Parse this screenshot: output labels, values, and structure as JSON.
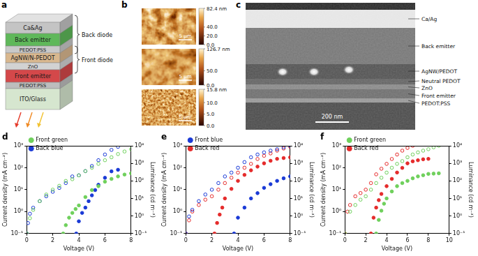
{
  "schematic": {
    "letter": "a",
    "layers": [
      "Ca&Ag",
      "Back emitter",
      "PEDOT:PSS",
      "AgNW/N-PEDOT",
      "ZnO",
      "Front emitter",
      "PEDOT:PSS",
      "ITO/Glass"
    ],
    "groups": [
      "Back diode",
      "Front diode"
    ]
  },
  "afm": {
    "letter": "b",
    "images": [
      {
        "scale_bar": "5 μm",
        "colorbar_range": [
          0,
          82.4
        ],
        "colorbar_ticks": [
          {
            "value": 82.4,
            "label": "82.4 nm"
          },
          {
            "value": 40,
            "label": "40.0"
          },
          {
            "value": 20,
            "label": "20.0"
          },
          {
            "value": 0,
            "label": "0.0"
          }
        ]
      },
      {
        "scale_bar": "5 μm",
        "colorbar_range": [
          0,
          126.7
        ],
        "colorbar_ticks": [
          {
            "value": 126.7,
            "label": "126.7 nm"
          },
          {
            "value": 50,
            "label": "50.0"
          },
          {
            "value": 0,
            "label": "0.0"
          }
        ]
      },
      {
        "scale_bar": "5 μm",
        "colorbar_range": [
          0,
          15.8
        ],
        "colorbar_ticks": [
          {
            "value": 15.8,
            "label": "15.8 nm"
          },
          {
            "value": 10,
            "label": "10.0"
          },
          {
            "value": 5,
            "label": "5.0"
          },
          {
            "value": 0,
            "label": "0.0"
          }
        ]
      }
    ]
  },
  "sem": {
    "letter": "c",
    "labels": [
      "Ca/Ag",
      "Back emitter",
      "AgNW/PEDOT",
      "Neutral PEDOT",
      "ZnO",
      "Front emitter",
      "PEDOT:PSS"
    ],
    "scale_bar": "200 nm"
  },
  "chart_data": [
    {
      "letter": "d",
      "type": "scatter",
      "x_label": "Voltage (V)",
      "y_label": "Current density (mA cm⁻²)",
      "y2_label": "Luminance (cd m⁻²)",
      "log": "y",
      "grid": false,
      "legend": "top left",
      "xlim": [
        0,
        8
      ],
      "xticks": [
        0,
        2,
        4,
        6,
        8
      ],
      "ylim": [
        0.1,
        1000
      ],
      "yticks": [
        {
          "value": 0.1,
          "label": "10⁻¹"
        },
        {
          "value": 1,
          "label": "10⁰"
        },
        {
          "value": 10,
          "label": "10¹"
        },
        {
          "value": 100,
          "label": "10²"
        },
        {
          "value": 1000,
          "label": "10³"
        }
      ],
      "y2lim": [
        0.1,
        10000
      ],
      "y2ticks": [
        {
          "value": 0.1,
          "label": "10⁻¹"
        },
        {
          "value": 1,
          "label": "10⁰"
        },
        {
          "value": 10,
          "label": "10¹"
        },
        {
          "value": 100,
          "label": "10²"
        },
        {
          "value": 1000,
          "label": "10³"
        },
        {
          "value": 10000,
          "label": "10⁴"
        }
      ],
      "series": [
        {
          "name": "Front green",
          "color": "#6fd05c",
          "marker": "open_circle",
          "axis": "y",
          "x": [
            0,
            0.25,
            0.5,
            1,
            1.5,
            2,
            2.5,
            3,
            3.5,
            4,
            4.5,
            5,
            5.5,
            6,
            6.5,
            7,
            7.5,
            8
          ],
          "values": [
            0.1,
            0.5,
            1.2,
            3,
            6,
            10,
            15,
            25,
            30,
            45,
            70,
            100,
            150,
            220,
            300,
            420,
            550,
            700
          ]
        },
        {
          "name": "Back blue",
          "color": "#1a3ad6",
          "marker": "open_circle",
          "axis": "y",
          "x": [
            0,
            0.1,
            0.25,
            0.5,
            1,
            1.5,
            2,
            2.5,
            3,
            3.5,
            4,
            4.5,
            5,
            5.5,
            6,
            6.5,
            7
          ],
          "values": [
            0.1,
            0.3,
            0.8,
            1.5,
            3,
            5,
            8,
            12,
            20,
            40,
            45,
            70,
            120,
            220,
            400,
            650,
            900
          ]
        },
        {
          "name": "Front green",
          "color": "#6fd05c",
          "marker": "circle",
          "axis": "y2",
          "x": [
            2.8,
            3,
            3.25,
            3.5,
            3.75,
            4,
            4.5,
            5,
            5.5,
            6,
            6.5,
            7,
            7.5,
            8
          ],
          "values": [
            0.1,
            0.3,
            0.8,
            1.5,
            2.5,
            4,
            12,
            30,
            50,
            90,
            130,
            180,
            230,
            270
          ]
        },
        {
          "name": "Back blue",
          "color": "#1a3ad6",
          "marker": "circle",
          "axis": "y2",
          "x": [
            3.8,
            4,
            4.25,
            4.5,
            4.75,
            5,
            5.25,
            5.5,
            6,
            6.5,
            7
          ],
          "values": [
            0.1,
            0.5,
            1.5,
            3,
            7,
            15,
            30,
            60,
            150,
            350,
            430
          ]
        }
      ]
    },
    {
      "letter": "e",
      "type": "scatter",
      "x_label": "Voltage (V)",
      "y_label": "Current density (mA cm⁻²)",
      "y2_label": "Luminance (cd m⁻²)",
      "log": "y",
      "grid": false,
      "legend": "top left",
      "xlim": [
        0,
        8
      ],
      "xticks": [
        0,
        2,
        4,
        6,
        8
      ],
      "ylim": [
        0.1,
        1000
      ],
      "yticks": [
        {
          "value": 0.1,
          "label": "10⁻¹"
        },
        {
          "value": 1,
          "label": "10⁰"
        },
        {
          "value": 10,
          "label": "10¹"
        },
        {
          "value": 100,
          "label": "10²"
        },
        {
          "value": 1000,
          "label": "10³"
        }
      ],
      "y2lim": [
        0.1,
        10000
      ],
      "y2ticks": [
        {
          "value": 0.1,
          "label": "10⁻¹"
        },
        {
          "value": 1,
          "label": "10⁰"
        },
        {
          "value": 10,
          "label": "10¹"
        },
        {
          "value": 100,
          "label": "10²"
        },
        {
          "value": 1000,
          "label": "10³"
        },
        {
          "value": 10000,
          "label": "10⁴"
        }
      ],
      "series": [
        {
          "name": "Front blue",
          "color": "#1a3ad6",
          "marker": "open_circle",
          "axis": "y",
          "x": [
            0,
            0.25,
            0.5,
            1,
            1.5,
            2,
            2.5,
            3,
            3.5,
            4,
            4.5,
            5,
            5.5,
            6,
            6.5,
            7,
            7.5,
            8
          ],
          "values": [
            0.1,
            0.6,
            1.2,
            3,
            6,
            10,
            20,
            40,
            60,
            100,
            180,
            300,
            400,
            500,
            600,
            700,
            850,
            1000
          ]
        },
        {
          "name": "Back red",
          "color": "#e52b2b",
          "marker": "open_circle",
          "axis": "y",
          "x": [
            0,
            0.25,
            0.5,
            1,
            1.5,
            2,
            2.5,
            3,
            3.5,
            4,
            4.5,
            5,
            5.5,
            6,
            6.5,
            7,
            7.5,
            8
          ],
          "values": [
            0.1,
            0.4,
            1,
            2,
            3.5,
            5,
            10,
            20,
            35,
            60,
            100,
            150,
            250,
            350,
            450,
            600,
            750,
            900
          ]
        },
        {
          "name": "Front blue",
          "color": "#1a3ad6",
          "marker": "circle",
          "axis": "y2",
          "x": [
            3.7,
            4,
            4.5,
            5,
            5.5,
            6,
            6.5,
            7,
            7.5,
            8
          ],
          "values": [
            0.1,
            0.8,
            3,
            10,
            20,
            40,
            65,
            100,
            140,
            180
          ]
        },
        {
          "name": "Back red",
          "color": "#e52b2b",
          "marker": "circle",
          "axis": "y2",
          "x": [
            2.2,
            2.4,
            2.6,
            2.8,
            3,
            3.5,
            4,
            4.5,
            5,
            5.5,
            6,
            6.5,
            7,
            7.5,
            8
          ],
          "values": [
            0.1,
            0.4,
            1.2,
            3,
            10,
            35,
            100,
            220,
            400,
            650,
            1000,
            1400,
            1800,
            2000,
            2200
          ]
        }
      ]
    },
    {
      "letter": "f",
      "type": "scatter",
      "x_label": "Voltage (V)",
      "y_label": "Current density (mA cm⁻²)",
      "y2_label": "Luminance (cd m⁻²)",
      "log": "y",
      "grid": false,
      "legend": "top left",
      "xlim": [
        0,
        10
      ],
      "xticks": [
        0,
        2,
        4,
        6,
        8,
        10
      ],
      "ylim": [
        0.1,
        1000
      ],
      "yticks": [
        {
          "value": 0.1,
          "label": "10⁻¹"
        },
        {
          "value": 1,
          "label": "10⁰"
        },
        {
          "value": 10,
          "label": "10¹"
        },
        {
          "value": 100,
          "label": "10²"
        },
        {
          "value": 1000,
          "label": "10³"
        }
      ],
      "y2lim": [
        0.1,
        10000
      ],
      "y2ticks": [
        {
          "value": 0.1,
          "label": "10⁻¹"
        },
        {
          "value": 1,
          "label": "10⁰"
        },
        {
          "value": 10,
          "label": "10¹"
        },
        {
          "value": 100,
          "label": "10²"
        },
        {
          "value": 1000,
          "label": "10³"
        },
        {
          "value": 10000,
          "label": "10⁴"
        }
      ],
      "series": [
        {
          "name": "Front green",
          "color": "#6fd05c",
          "marker": "open_circle",
          "axis": "y",
          "x": [
            0,
            0.5,
            1,
            1.5,
            2,
            2.5,
            3,
            3.5,
            4,
            4.5,
            5,
            5.5,
            6,
            6.5,
            7,
            7.5,
            8,
            8.5,
            9
          ],
          "values": [
            0.1,
            1,
            2,
            3.5,
            5,
            10,
            20,
            35,
            60,
            100,
            150,
            200,
            300,
            400,
            500,
            600,
            700,
            850,
            1000
          ]
        },
        {
          "name": "Back red",
          "color": "#e52b2b",
          "marker": "open_circle",
          "axis": "y",
          "x": [
            0,
            0.25,
            0.5,
            1,
            1.5,
            2,
            2.5,
            3,
            3.5,
            4,
            4.5,
            5,
            5.5,
            6,
            6.5
          ],
          "values": [
            0.1,
            1,
            2,
            5,
            7,
            10,
            20,
            50,
            90,
            150,
            250,
            400,
            600,
            800,
            1000
          ]
        },
        {
          "name": "Front green",
          "color": "#6fd05c",
          "marker": "circle",
          "axis": "y2",
          "x": [
            3,
            3.25,
            3.5,
            3.75,
            4,
            4.5,
            5,
            5.5,
            6,
            6.5,
            7,
            7.5,
            8,
            8.5,
            9
          ],
          "values": [
            0.1,
            0.6,
            2,
            5,
            10,
            25,
            50,
            75,
            100,
            140,
            180,
            210,
            250,
            260,
            270
          ]
        },
        {
          "name": "Back red",
          "color": "#e52b2b",
          "marker": "circle",
          "axis": "y2",
          "x": [
            2.5,
            2.75,
            3,
            3.25,
            3.5,
            4,
            4.5,
            5,
            5.5,
            6,
            6.5,
            7,
            7.5,
            8
          ],
          "values": [
            0.1,
            0.8,
            3,
            8,
            18,
            50,
            130,
            300,
            550,
            1000,
            1300,
            1500,
            1700,
            1800
          ]
        }
      ]
    }
  ]
}
